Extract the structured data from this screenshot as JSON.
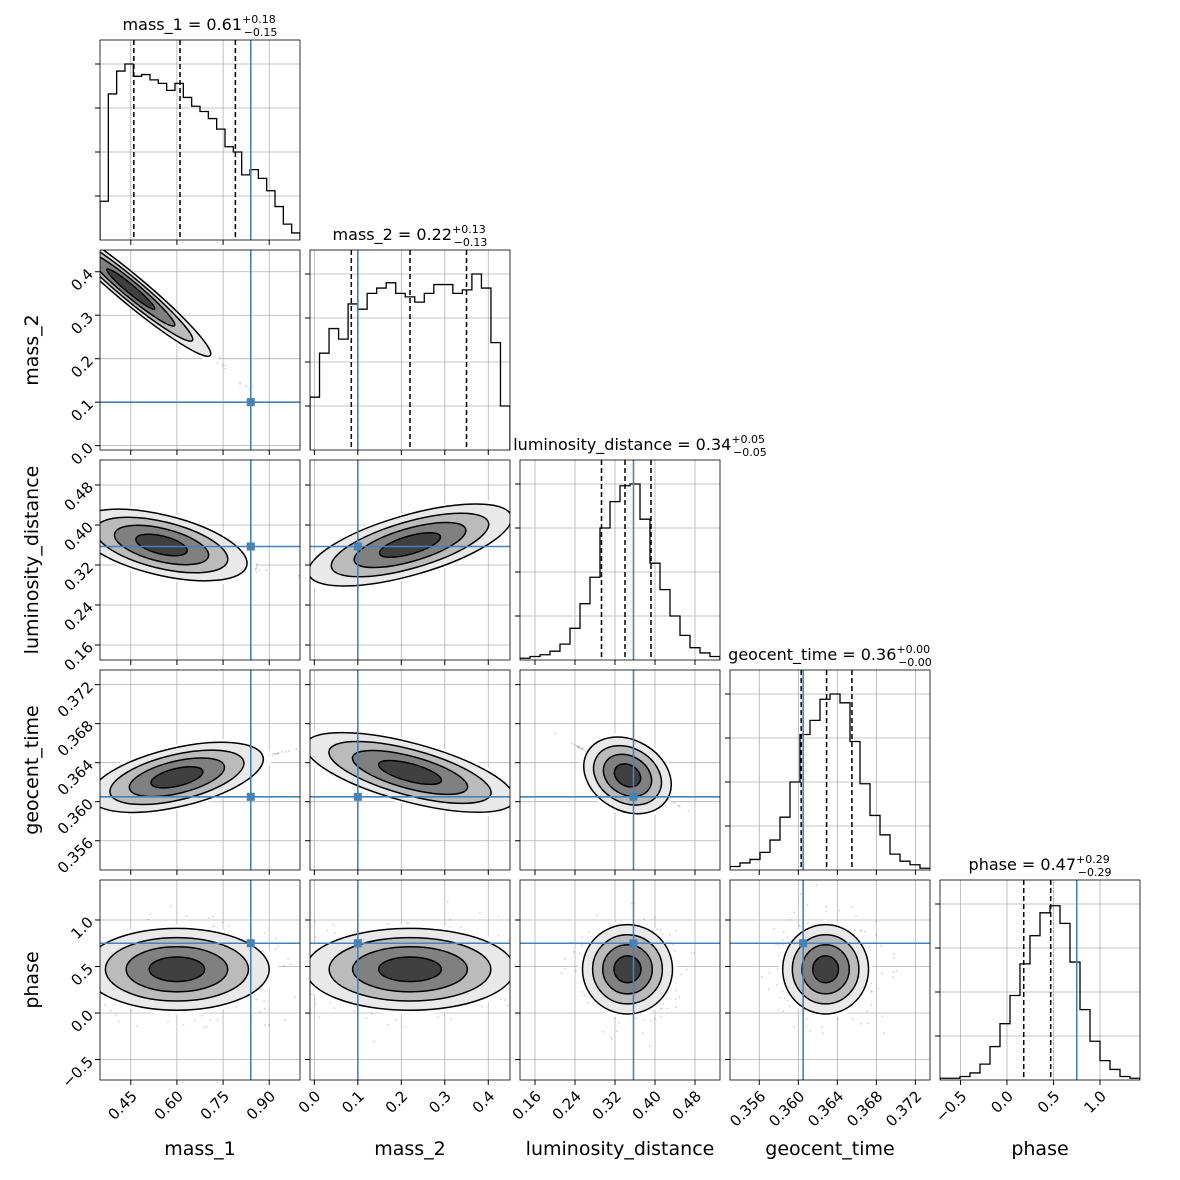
{
  "chart_data": {
    "type": "corner",
    "parameters": [
      {
        "name": "mass_1",
        "label": "mass_1",
        "median": 0.61,
        "plus": 0.18,
        "minus": 0.15,
        "title": {
          "prefix": "mass_1 = 0.61",
          "sup": "+0.18",
          "sub": "−0.15"
        },
        "quantiles": [
          0.46,
          0.61,
          0.79
        ],
        "truth": 0.84,
        "range": [
          0.35,
          1.0
        ],
        "ticks": [
          0.45,
          0.6,
          0.75,
          0.9
        ],
        "tick_labels": [
          "0.45",
          "0.60",
          "0.75",
          "0.90"
        ],
        "hist": [
          0.22,
          0.83,
          0.96,
          1.0,
          0.93,
          0.94,
          0.91,
          0.89,
          0.85,
          0.89,
          0.81,
          0.76,
          0.73,
          0.69,
          0.63,
          0.53,
          0.5,
          0.37,
          0.4,
          0.35,
          0.28,
          0.19,
          0.09,
          0.04
        ]
      },
      {
        "name": "mass_2",
        "label": "mass_2",
        "median": 0.22,
        "plus": 0.13,
        "minus": 0.13,
        "title": {
          "prefix": "mass_2 = 0.22",
          "sup": "+0.13",
          "sub": "−0.13"
        },
        "quantiles": [
          0.085,
          0.22,
          0.35
        ],
        "truth": 0.1,
        "range": [
          -0.01,
          0.45
        ],
        "ticks": [
          0.0,
          0.1,
          0.2,
          0.3,
          0.4
        ],
        "tick_labels": [
          "0.0",
          "0.1",
          "0.2",
          "0.3",
          "0.4"
        ],
        "hist": [
          0.3,
          0.55,
          0.69,
          0.63,
          0.83,
          0.8,
          0.89,
          0.92,
          0.95,
          0.89,
          0.87,
          0.84,
          0.89,
          0.94,
          0.94,
          0.89,
          0.91,
          1.0,
          0.92,
          0.61,
          0.25
        ]
      },
      {
        "name": "luminosity_distance",
        "label": "luminosity_distance",
        "median": 0.34,
        "plus": 0.05,
        "minus": 0.05,
        "title": {
          "prefix": "luminosity_distance = 0.34",
          "sup": "+0.05",
          "sub": "−0.05"
        },
        "quantiles": [
          0.293,
          0.34,
          0.392
        ],
        "truth": 0.357,
        "range": [
          0.13,
          0.53
        ],
        "ticks": [
          0.16,
          0.24,
          0.32,
          0.4,
          0.48
        ],
        "tick_labels": [
          "0.16",
          "0.24",
          "0.32",
          "0.40",
          "0.48"
        ],
        "hist": [
          0.01,
          0.02,
          0.03,
          0.05,
          0.09,
          0.18,
          0.32,
          0.47,
          0.75,
          0.9,
          0.99,
          1.0,
          0.8,
          0.55,
          0.4,
          0.25,
          0.14,
          0.07,
          0.04,
          0.02
        ]
      },
      {
        "name": "geocent_time",
        "label": "geocent_time",
        "median": 0.36,
        "plus": 0.0,
        "minus": 0.0,
        "title": {
          "prefix": "geocent_time = 0.36",
          "sup": "+0.00",
          "sub": "−0.00"
        },
        "quantiles": [
          0.3603,
          0.3629,
          0.3655
        ],
        "truth": 0.3605,
        "range": [
          0.353,
          0.3735
        ],
        "ticks": [
          0.356,
          0.36,
          0.364,
          0.368,
          0.372
        ],
        "tick_labels": [
          "0.356",
          "0.360",
          "0.364",
          "0.368",
          "0.372"
        ],
        "hist": [
          0.02,
          0.04,
          0.06,
          0.1,
          0.17,
          0.3,
          0.5,
          0.77,
          0.85,
          0.97,
          1.0,
          0.95,
          0.73,
          0.49,
          0.31,
          0.2,
          0.09,
          0.05,
          0.03,
          0.01
        ]
      },
      {
        "name": "phase",
        "label": "phase",
        "median": 0.47,
        "plus": 0.29,
        "minus": 0.29,
        "title": {
          "prefix": "phase = 0.47",
          "sup": "+0.29",
          "sub": "−0.29"
        },
        "quantiles": [
          0.18,
          0.47,
          0.75
        ],
        "truth": 0.75,
        "range": [
          -0.72,
          1.43
        ],
        "ticks": [
          -0.5,
          0.0,
          0.5,
          1.0
        ],
        "tick_labels": [
          "−0.5",
          "0.0",
          "0.5",
          "1.0"
        ],
        "hist": [
          0.01,
          0.01,
          0.02,
          0.04,
          0.09,
          0.19,
          0.32,
          0.48,
          0.66,
          0.82,
          0.95,
          0.99,
          0.89,
          0.67,
          0.4,
          0.22,
          0.11,
          0.06,
          0.02,
          0.01
        ]
      }
    ],
    "pairs": [
      {
        "x": 0,
        "y": 1,
        "peak": [
          0.45,
          0.36
        ],
        "direction": [
          1,
          -0.59
        ],
        "spread_major": 0.15,
        "spread_minor": 0.012
      },
      {
        "x": 0,
        "y": 2,
        "peak": [
          0.55,
          0.36
        ],
        "direction": [
          1,
          -0.15
        ],
        "spread_major": 0.14,
        "spread_minor": 0.03
      },
      {
        "x": 1,
        "y": 2,
        "peak": [
          0.22,
          0.36
        ],
        "direction": [
          1,
          0.25
        ],
        "spread_major": 0.12,
        "spread_minor": 0.03
      },
      {
        "x": 0,
        "y": 3,
        "peak": [
          0.6,
          0.3625
        ],
        "direction": [
          1,
          0.0075
        ],
        "spread_major": 0.14,
        "spread_minor": 0.0015
      },
      {
        "x": 1,
        "y": 3,
        "peak": [
          0.22,
          0.363
        ],
        "direction": [
          1,
          -0.012
        ],
        "spread_major": 0.12,
        "spread_minor": 0.0015
      },
      {
        "x": 2,
        "y": 3,
        "peak": [
          0.345,
          0.3627
        ],
        "direction": [
          1,
          -0.03
        ],
        "spread_major": 0.04,
        "spread_minor": 0.0018
      },
      {
        "x": 0,
        "y": 4,
        "peak": [
          0.6,
          0.47
        ],
        "direction": [
          1,
          0
        ],
        "spread_major": 0.15,
        "spread_minor": 0.22
      },
      {
        "x": 1,
        "y": 4,
        "peak": [
          0.22,
          0.47
        ],
        "direction": [
          1,
          0
        ],
        "spread_major": 0.12,
        "spread_minor": 0.22
      },
      {
        "x": 2,
        "y": 4,
        "peak": [
          0.345,
          0.47
        ],
        "direction": [
          1,
          0
        ],
        "spread_major": 0.045,
        "spread_minor": 0.24
      },
      {
        "x": 3,
        "y": 4,
        "peak": [
          0.3628,
          0.47
        ],
        "direction": [
          1,
          0
        ],
        "spread_major": 0.0022,
        "spread_minor": 0.24
      }
    ],
    "truth_color": "#4682b4",
    "line_color": "#000000",
    "grid": true
  }
}
